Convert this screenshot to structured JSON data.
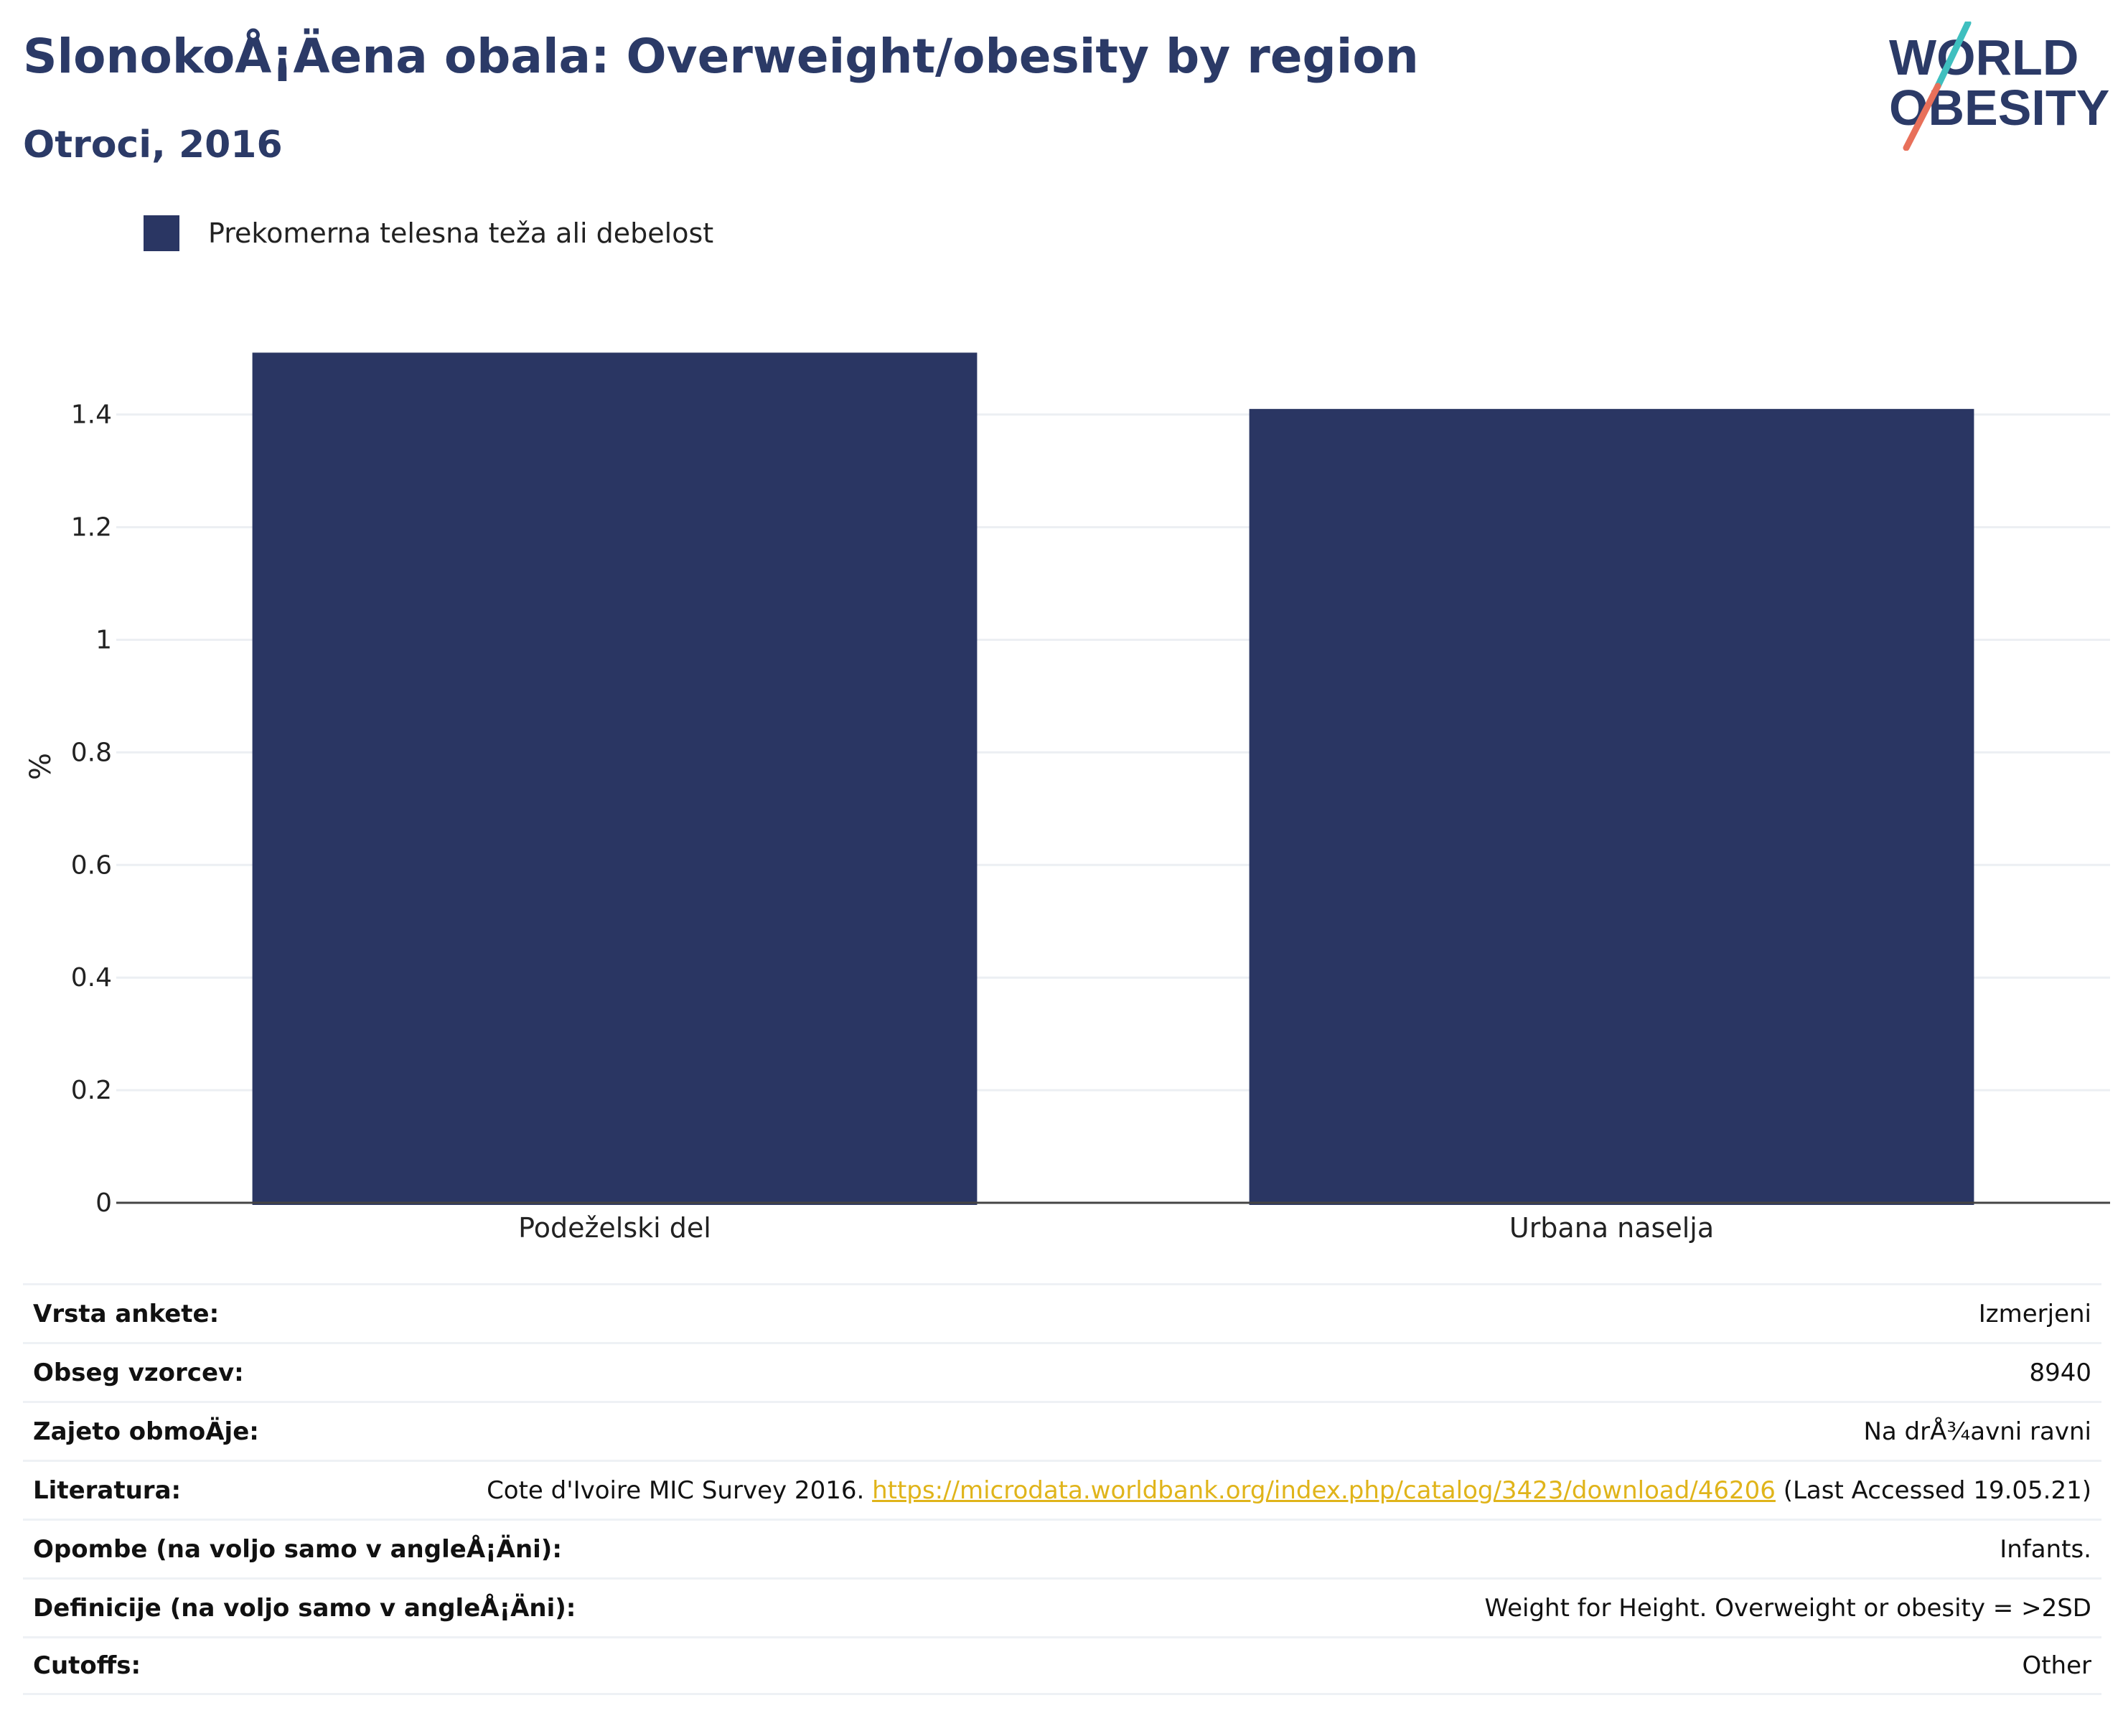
{
  "header": {
    "title": "SlonokoÅ¡Ä\u001fena obala: Overweight/obesity by region",
    "subtitle": "Otroci, 2016"
  },
  "logo": {
    "line1": "WORLD",
    "line2": "OBESITY",
    "colors": {
      "text": "#2b3a67",
      "slash_top": "#3fbfbf",
      "slash_bottom": "#e8705a"
    }
  },
  "chart_data": {
    "type": "bar",
    "categories": [
      "Podeželski del",
      "Urbana naselja"
    ],
    "series": [
      {
        "name": "Prekomerna telesna teža ali debelost",
        "values": [
          1.51,
          1.41
        ],
        "color": "#2a3663"
      }
    ],
    "ylabel": "%",
    "ylim": [
      0,
      1.55
    ],
    "yticks": [
      0,
      0.2,
      0.4,
      0.6,
      0.8,
      1,
      1.2,
      1.4
    ],
    "ytick_labels": [
      "0",
      "0.2",
      "0.4",
      "0.6",
      "0.8",
      "1",
      "1.2",
      "1.4"
    ],
    "grid": true,
    "legend_position": "top-left"
  },
  "info": [
    {
      "label": "Vrsta ankete:",
      "value": "Izmerjeni"
    },
    {
      "label": "Obseg vzorcev:",
      "value": "8940"
    },
    {
      "label": "Zajeto obmoÄ\u001fje:",
      "value": "Na drÅ¾avni ravni"
    },
    {
      "label": "Literatura:",
      "value_prefix": "Cote d'Ivoire MIC Survey 2016. ",
      "link": "https://microdata.worldbank.org/index.php/catalog/3423/download/46206",
      "value_suffix": " (Last Accessed 19.05.21)"
    },
    {
      "label": "Opombe (na voljo samo v angleÅ¡Ä\u001fni):",
      "value": "Infants."
    },
    {
      "label": "Definicije (na voljo samo v angleÅ¡Ä\u001fni):",
      "value": "Weight for Height. Overweight or obesity = >2SD"
    },
    {
      "label": "Cutoffs:",
      "value": "Other"
    }
  ]
}
